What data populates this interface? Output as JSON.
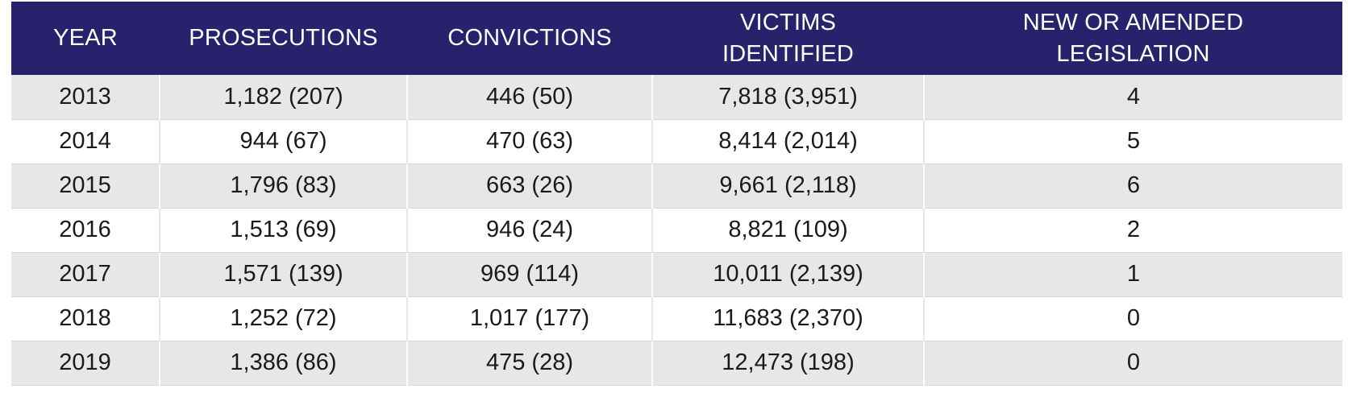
{
  "table": {
    "headers": [
      "YEAR",
      "PROSECUTIONS",
      "CONVICTIONS",
      "VICTIMS IDENTIFIED",
      "NEW OR AMENDED LEGISLATION"
    ],
    "rows": [
      [
        "2013",
        "1,182 (207)",
        "446 (50)",
        "7,818 (3,951)",
        "4"
      ],
      [
        "2014",
        "944 (67)",
        "470 (63)",
        "8,414 (2,014)",
        "5"
      ],
      [
        "2015",
        "1,796 (83)",
        "663 (26)",
        "9,661 (2,118)",
        "6"
      ],
      [
        "2016",
        "1,513 (69)",
        "946 (24)",
        "8,821 (109)",
        "2"
      ],
      [
        "2017",
        "1,571 (139)",
        "969 (114)",
        "10,011 (2,139)",
        "1"
      ],
      [
        "2018",
        "1,252 (72)",
        "1,017 (177)",
        "11,683 (2,370)",
        "0"
      ],
      [
        "2019",
        "1,386 (86)",
        "475 (28)",
        "12,473 (198)",
        "0"
      ]
    ]
  },
  "colors": {
    "header_bg": "#28216b",
    "header_text": "#ffffff",
    "row_shaded": "#e6e7e9",
    "row_plain": "#ffffff",
    "cell_text": "#1a1a1a"
  }
}
